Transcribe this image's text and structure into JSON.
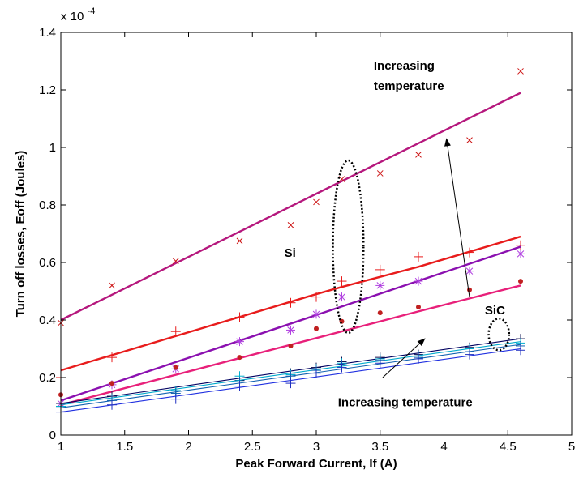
{
  "chart_data": {
    "type": "line",
    "title": "",
    "xlabel": "Peak Forward Current, If (A)",
    "ylabel": "Turn off losses, Eoff (Joules)",
    "y_exponent_label": "x 10",
    "y_exponent_power": "-4",
    "xlim": [
      1,
      5
    ],
    "ylim": [
      0,
      1.4
    ],
    "x_ticks": [
      1,
      1.5,
      2,
      2.5,
      3,
      3.5,
      4,
      4.5,
      5
    ],
    "x_tick_labels": [
      "1",
      "1.5",
      "2",
      "2.5",
      "3",
      "3.5",
      "4",
      "4.5",
      "5"
    ],
    "y_ticks": [
      0,
      0.2,
      0.4,
      0.6,
      0.8,
      1.0,
      1.2,
      1.4
    ],
    "y_tick_labels": [
      "0",
      "0.2",
      "0.4",
      "0.6",
      "0.8",
      "1",
      "1.2",
      "1.4"
    ],
    "grid": false,
    "series": [
      {
        "color": "#b5177d",
        "marker": "x",
        "marker_color": "#cc1111",
        "fit": [
          [
            1,
            0.4
          ],
          [
            4.6,
            1.19
          ]
        ],
        "points": [
          [
            1,
            0.39
          ],
          [
            1.4,
            0.52
          ],
          [
            1.9,
            0.605
          ],
          [
            2.4,
            0.675
          ],
          [
            2.8,
            0.73
          ],
          [
            3.0,
            0.81
          ],
          [
            3.2,
            0.89
          ],
          [
            3.5,
            0.91
          ],
          [
            3.8,
            0.975
          ],
          [
            4.2,
            1.025
          ],
          [
            4.6,
            1.265
          ]
        ]
      },
      {
        "color": "#e81c1c",
        "marker": "+",
        "marker_color": "#e81c1c",
        "fit": [
          [
            1,
            0.225
          ],
          [
            3.0,
            0.49
          ],
          [
            3.2,
            0.515
          ],
          [
            3.8,
            0.585
          ],
          [
            4.6,
            0.69
          ]
        ],
        "points": [
          [
            1,
            0.2
          ],
          [
            1.4,
            0.27
          ],
          [
            1.9,
            0.36
          ],
          [
            2.4,
            0.41
          ],
          [
            2.8,
            0.46
          ],
          [
            3.0,
            0.48
          ],
          [
            3.2,
            0.535
          ],
          [
            3.5,
            0.575
          ],
          [
            3.8,
            0.62
          ],
          [
            4.2,
            0.635
          ],
          [
            4.6,
            0.66
          ]
        ]
      },
      {
        "color": "#8b10b0",
        "marker": "*",
        "marker_color": "#b040e0",
        "fit": [
          [
            1,
            0.12
          ],
          [
            4.6,
            0.655
          ]
        ],
        "points": [
          [
            1,
            0.11
          ],
          [
            1.4,
            0.175
          ],
          [
            1.9,
            0.23
          ],
          [
            2.4,
            0.325
          ],
          [
            2.8,
            0.365
          ],
          [
            3.0,
            0.42
          ],
          [
            3.2,
            0.48
          ],
          [
            3.5,
            0.52
          ],
          [
            3.8,
            0.535
          ],
          [
            4.2,
            0.57
          ],
          [
            4.6,
            0.63
          ]
        ]
      },
      {
        "color": "#e8207a",
        "marker": ".",
        "marker_color": "#c02020",
        "fit": [
          [
            1,
            0.105
          ],
          [
            3.8,
            0.43
          ],
          [
            4.2,
            0.475
          ],
          [
            4.6,
            0.52
          ]
        ],
        "points": [
          [
            1,
            0.14
          ],
          [
            1.4,
            0.18
          ],
          [
            1.9,
            0.235
          ],
          [
            2.4,
            0.27
          ],
          [
            2.8,
            0.31
          ],
          [
            3.0,
            0.37
          ],
          [
            3.2,
            0.395
          ],
          [
            3.5,
            0.425
          ],
          [
            3.8,
            0.445
          ],
          [
            4.2,
            0.505
          ],
          [
            4.6,
            0.535
          ]
        ]
      },
      {
        "color": "#000060",
        "marker": "+",
        "marker_color": "#101050",
        "fit": [
          [
            1,
            0.11
          ],
          [
            4.6,
            0.335
          ]
        ],
        "points": [
          [
            1,
            0.11
          ],
          [
            1.4,
            0.135
          ],
          [
            1.9,
            0.155
          ],
          [
            2.4,
            0.19
          ],
          [
            2.8,
            0.215
          ],
          [
            3.0,
            0.235
          ],
          [
            3.2,
            0.255
          ],
          [
            3.5,
            0.27
          ],
          [
            3.8,
            0.28
          ],
          [
            4.2,
            0.305
          ],
          [
            4.6,
            0.335
          ]
        ]
      },
      {
        "color": "#00aacc",
        "marker": "+",
        "marker_color": "#00b0d0",
        "fit": [
          [
            1,
            0.105
          ],
          [
            4.6,
            0.325
          ]
        ],
        "points": [
          [
            1,
            0.1
          ],
          [
            1.4,
            0.125
          ],
          [
            1.9,
            0.155
          ],
          [
            2.4,
            0.205
          ],
          [
            2.8,
            0.21
          ],
          [
            3.0,
            0.23
          ],
          [
            3.2,
            0.25
          ],
          [
            3.5,
            0.265
          ],
          [
            3.8,
            0.275
          ],
          [
            4.2,
            0.3
          ],
          [
            4.6,
            0.32
          ]
        ]
      },
      {
        "color": "#1060b0",
        "marker": "+",
        "marker_color": "#1060b0",
        "fit": [
          [
            1,
            0.095
          ],
          [
            4.6,
            0.315
          ]
        ],
        "points": [
          [
            1,
            0.095
          ],
          [
            1.4,
            0.12
          ],
          [
            1.9,
            0.145
          ],
          [
            2.4,
            0.185
          ],
          [
            2.8,
            0.205
          ],
          [
            3.0,
            0.225
          ],
          [
            3.2,
            0.245
          ],
          [
            3.5,
            0.26
          ],
          [
            3.8,
            0.27
          ],
          [
            4.2,
            0.29
          ],
          [
            4.6,
            0.31
          ]
        ]
      },
      {
        "color": "#2030e0",
        "marker": "+",
        "marker_color": "#2030c0",
        "fit": [
          [
            1,
            0.08
          ],
          [
            4.6,
            0.3
          ]
        ],
        "points": [
          [
            1,
            0.08
          ],
          [
            1.4,
            0.105
          ],
          [
            1.9,
            0.125
          ],
          [
            2.4,
            0.17
          ],
          [
            2.8,
            0.18
          ],
          [
            3.0,
            0.215
          ],
          [
            3.2,
            0.235
          ],
          [
            3.5,
            0.25
          ],
          [
            3.8,
            0.265
          ],
          [
            4.2,
            0.28
          ],
          [
            4.6,
            0.295
          ]
        ]
      }
    ],
    "annotations": [
      {
        "text": "Increasing",
        "x": 3.45,
        "y": 1.27
      },
      {
        "text": "temperature",
        "x": 3.45,
        "y": 1.2
      },
      {
        "text": "Si",
        "x": 2.75,
        "y": 0.62
      },
      {
        "text": "SiC",
        "x": 4.32,
        "y": 0.42
      },
      {
        "text": "Increasing temperature",
        "x": 3.17,
        "y": 0.1
      }
    ],
    "arrows": [
      {
        "from": [
          4.2,
          0.48
        ],
        "to": [
          4.02,
          1.03
        ]
      },
      {
        "from": [
          3.52,
          0.2
        ],
        "to": [
          3.85,
          0.335
        ]
      }
    ],
    "ellipses": [
      {
        "cx": 3.25,
        "cy": 0.655,
        "rx": 0.12,
        "ry": 0.3
      },
      {
        "cx": 4.43,
        "cy": 0.35,
        "rx": 0.08,
        "ry": 0.055
      }
    ]
  }
}
